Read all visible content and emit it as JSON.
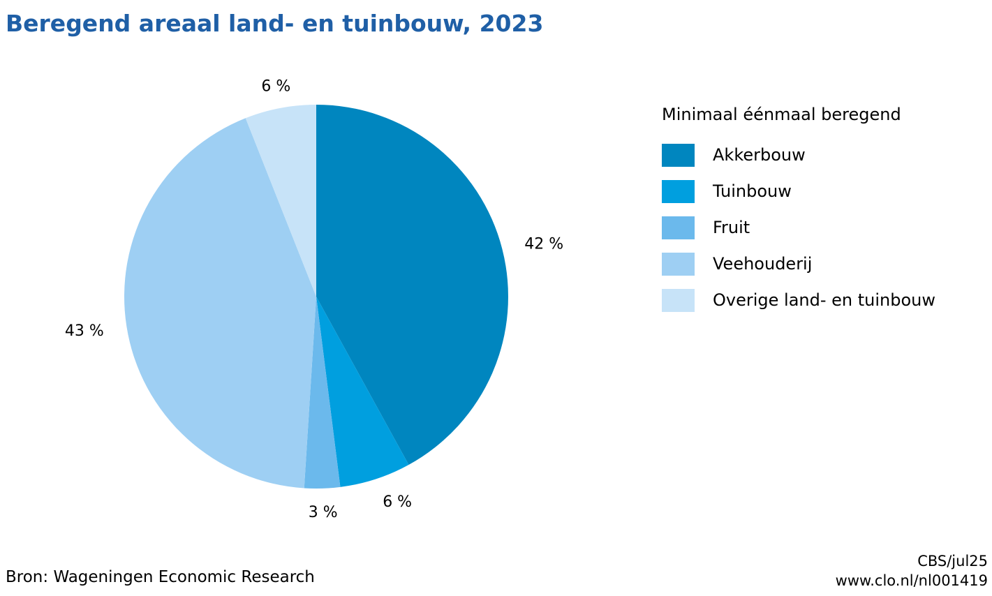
{
  "title": "Beregend areaal land- en tuinbouw, 2023",
  "source": "Bron: Wageningen Economic Research",
  "credit": {
    "line1": "CBS/jul25",
    "line2": "www.clo.nl/nl001419"
  },
  "legend_title": "Minimaal éénmaal beregend",
  "chart_data": {
    "type": "pie",
    "slices": [
      {
        "name": "Akkerbouw",
        "value": 42,
        "label": "42 %",
        "color": "#0086bf"
      },
      {
        "name": "Tuinbouw",
        "value": 6,
        "label": "6 %",
        "color": "#009fdf"
      },
      {
        "name": "Fruit",
        "value": 3,
        "label": "3 %",
        "color": "#6bb9ec"
      },
      {
        "name": "Veehouderij",
        "value": 43,
        "label": "43 %",
        "color": "#9ecff3"
      },
      {
        "name": "Overige land- en tuinbouw",
        "value": 6,
        "label": "6 %",
        "color": "#c7e3f8"
      }
    ],
    "start": "top",
    "direction": "clockwise",
    "legend_position": "right"
  }
}
